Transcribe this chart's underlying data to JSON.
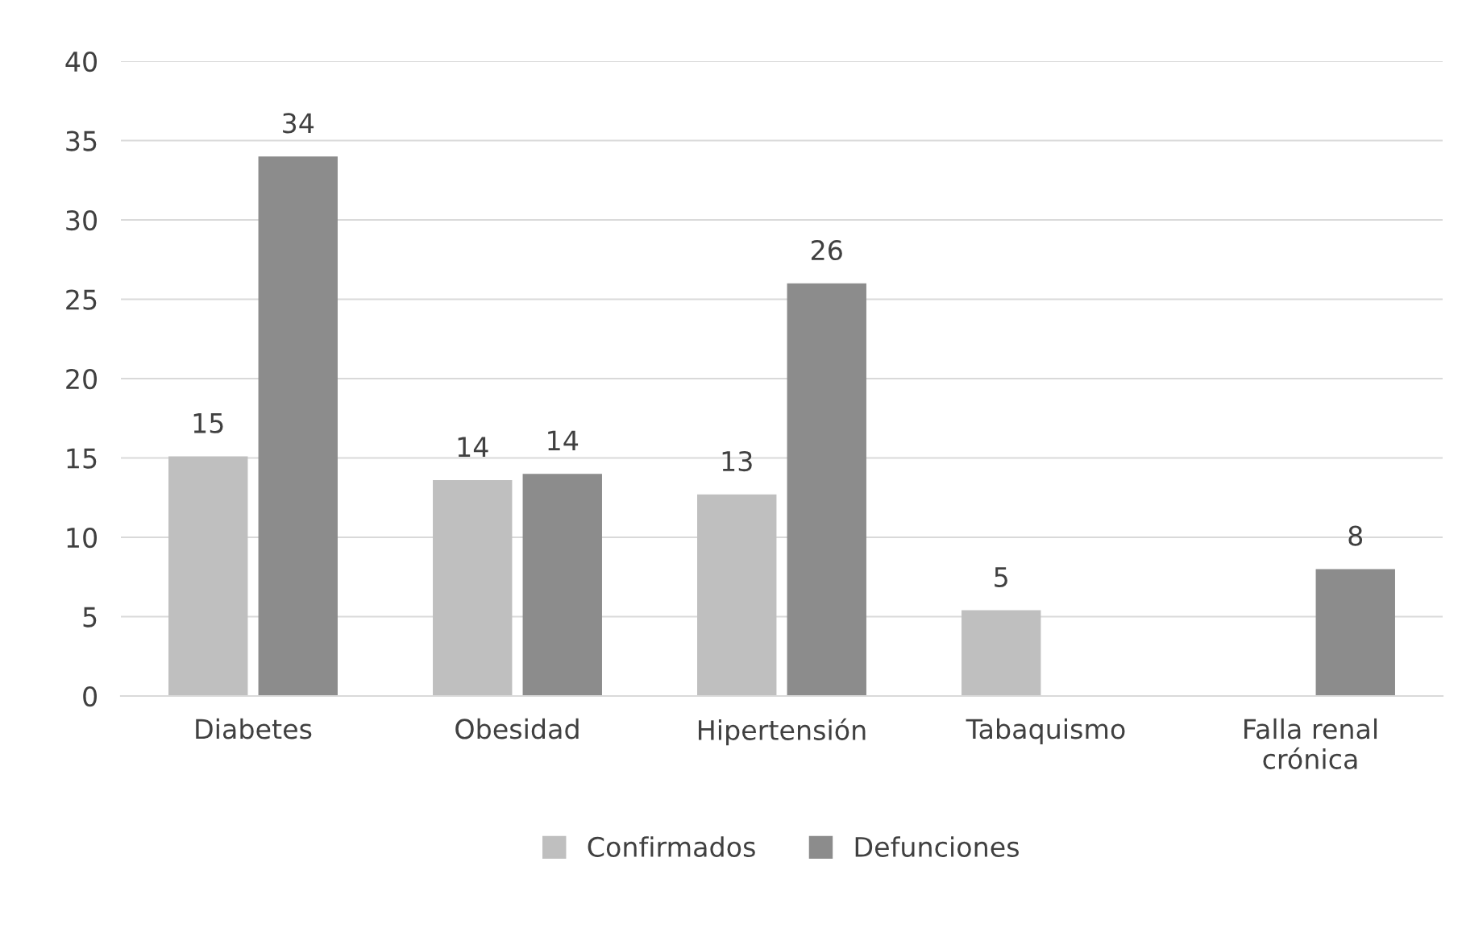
{
  "chart_data": {
    "type": "bar",
    "categories": [
      "Diabetes",
      "Obesidad",
      "Hipertensión",
      "Tabaquismo",
      "Falla renal\ncrónica"
    ],
    "series": [
      {
        "name": "Confirmados",
        "color": "#bfbfbf",
        "values": [
          15.1,
          13.6,
          12.7,
          5.4,
          null
        ],
        "value_labels": [
          "15",
          "14",
          "13",
          "5",
          null
        ]
      },
      {
        "name": "Defunciones",
        "color": "#8c8c8c",
        "values": [
          34,
          14,
          26,
          null,
          8
        ],
        "value_labels": [
          "34",
          "14",
          "26",
          null,
          "8"
        ]
      }
    ],
    "ylim": [
      0,
      40
    ],
    "yticks": [
      0,
      5,
      10,
      15,
      20,
      25,
      30,
      35,
      40
    ],
    "grid": "y",
    "legend": "bottom"
  }
}
